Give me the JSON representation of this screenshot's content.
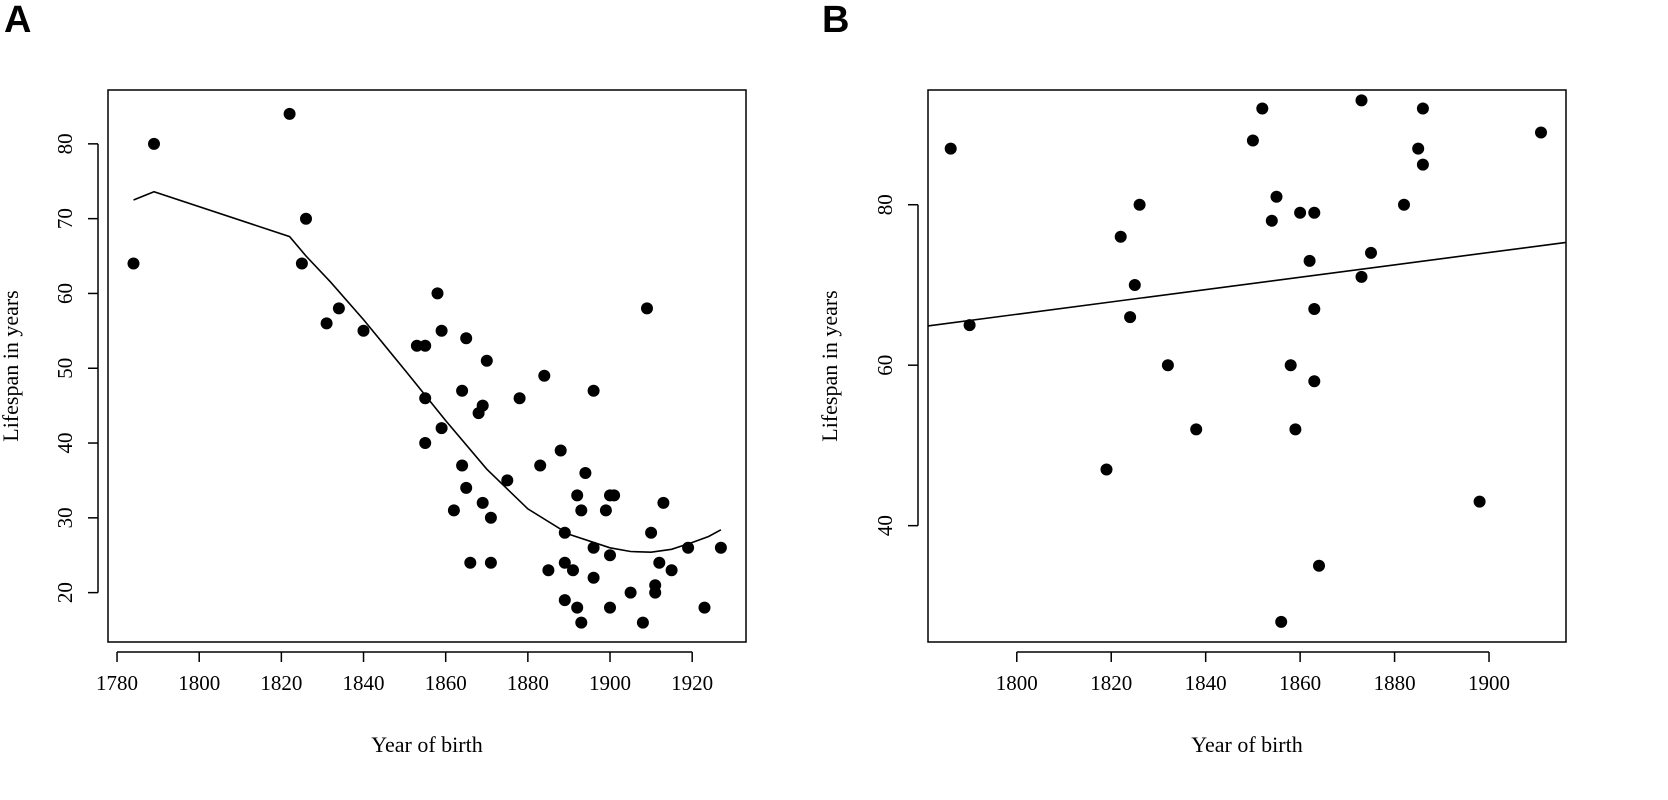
{
  "chart_data": [
    {
      "panel": "A",
      "type": "scatter",
      "xlabel": "Year of birth",
      "ylabel": "Lifespan in years",
      "xlim": [
        1777.8,
        1933.1
      ],
      "ylim": [
        13.4,
        87.2
      ],
      "xticks": [
        "1780",
        "1800",
        "1820",
        "1840",
        "1860",
        "1880",
        "1900",
        "1920"
      ],
      "yticks": [
        "20",
        "30",
        "40",
        "50",
        "60",
        "70",
        "80"
      ],
      "points": [
        [
          1784,
          64
        ],
        [
          1789,
          80
        ],
        [
          1822,
          84
        ],
        [
          1825,
          64
        ],
        [
          1826,
          70
        ],
        [
          1831,
          56
        ],
        [
          1834,
          58
        ],
        [
          1840,
          55
        ],
        [
          1853,
          53
        ],
        [
          1855,
          53
        ],
        [
          1855,
          46
        ],
        [
          1855,
          40
        ],
        [
          1858,
          60
        ],
        [
          1859,
          55
        ],
        [
          1859,
          42
        ],
        [
          1862,
          31
        ],
        [
          1864,
          47
        ],
        [
          1864,
          37
        ],
        [
          1865,
          54
        ],
        [
          1865,
          34
        ],
        [
          1866,
          24
        ],
        [
          1868,
          44
        ],
        [
          1869,
          45
        ],
        [
          1869,
          32
        ],
        [
          1870,
          51
        ],
        [
          1871,
          30
        ],
        [
          1871,
          24
        ],
        [
          1875,
          35
        ],
        [
          1878,
          46
        ],
        [
          1883,
          37
        ],
        [
          1884,
          49
        ],
        [
          1885,
          23
        ],
        [
          1888,
          39
        ],
        [
          1889,
          28
        ],
        [
          1889,
          24
        ],
        [
          1889,
          19
        ],
        [
          1891,
          23
        ],
        [
          1892,
          33
        ],
        [
          1892,
          18
        ],
        [
          1893,
          31
        ],
        [
          1893,
          16
        ],
        [
          1894,
          36
        ],
        [
          1896,
          47
        ],
        [
          1896,
          26
        ],
        [
          1896,
          22
        ],
        [
          1899,
          31
        ],
        [
          1900,
          33
        ],
        [
          1900,
          25
        ],
        [
          1900,
          18
        ],
        [
          1901,
          33
        ],
        [
          1905,
          20
        ],
        [
          1908,
          16
        ],
        [
          1909,
          58
        ],
        [
          1910,
          28
        ],
        [
          1911,
          21
        ],
        [
          1911,
          20
        ],
        [
          1912,
          24
        ],
        [
          1913,
          32
        ],
        [
          1915,
          23
        ],
        [
          1919,
          26
        ],
        [
          1923,
          18
        ],
        [
          1927,
          26
        ]
      ],
      "fit_line": [
        [
          1784,
          72.5
        ],
        [
          1789,
          73.6
        ],
        [
          1822,
          67.6
        ],
        [
          1826,
          65.0
        ],
        [
          1832,
          61.5
        ],
        [
          1840,
          56.5
        ],
        [
          1850,
          49.8
        ],
        [
          1860,
          43.0
        ],
        [
          1870,
          36.5
        ],
        [
          1880,
          31.2
        ],
        [
          1890,
          27.8
        ],
        [
          1900,
          26.0
        ],
        [
          1905,
          25.5
        ],
        [
          1910,
          25.4
        ],
        [
          1915,
          25.8
        ],
        [
          1920,
          26.7
        ],
        [
          1924,
          27.5
        ],
        [
          1927,
          28.4
        ]
      ]
    },
    {
      "panel": "B",
      "type": "scatter",
      "xlabel": "Year of birth",
      "ylabel": "Lifespan in years",
      "xlim": [
        1781.2,
        1916.3
      ],
      "ylim": [
        25.5,
        94.3
      ],
      "xticks": [
        "1800",
        "1820",
        "1840",
        "1860",
        "1880",
        "1900"
      ],
      "yticks": [
        "40",
        "60",
        "80"
      ],
      "points": [
        [
          1786,
          87
        ],
        [
          1790,
          65
        ],
        [
          1819,
          47
        ],
        [
          1822,
          76
        ],
        [
          1824,
          66
        ],
        [
          1825,
          70
        ],
        [
          1826,
          80
        ],
        [
          1832,
          60
        ],
        [
          1838,
          52
        ],
        [
          1850,
          88
        ],
        [
          1852,
          92
        ],
        [
          1854,
          78
        ],
        [
          1855,
          81
        ],
        [
          1856,
          28
        ],
        [
          1858,
          60
        ],
        [
          1859,
          52
        ],
        [
          1860,
          79
        ],
        [
          1862,
          73
        ],
        [
          1863,
          79
        ],
        [
          1863,
          67
        ],
        [
          1863,
          58
        ],
        [
          1864,
          35
        ],
        [
          1873,
          93
        ],
        [
          1873,
          71
        ],
        [
          1875,
          74
        ],
        [
          1882,
          80
        ],
        [
          1885,
          87
        ],
        [
          1886,
          92
        ],
        [
          1886,
          85
        ],
        [
          1898,
          43
        ],
        [
          1911,
          89
        ]
      ],
      "fit_line": [
        [
          1781.2,
          64.9
        ],
        [
          1916.3,
          75.3
        ]
      ]
    }
  ],
  "panels": [
    {
      "letter": "A"
    },
    {
      "letter": "B"
    }
  ]
}
